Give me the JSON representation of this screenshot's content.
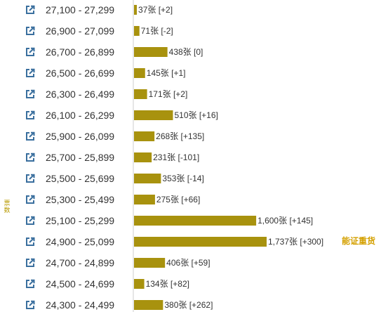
{
  "side_label": "票数",
  "colors": {
    "bar": "#a8920e",
    "axis": "#cccccc",
    "icon": "#3a6f9e",
    "note": "#d4a000"
  },
  "chart_data": {
    "type": "bar",
    "orientation": "horizontal",
    "categories": [
      "27,100 - 27,299",
      "26,900 - 27,099",
      "26,700 - 26,899",
      "26,500 - 26,699",
      "26,300 - 26,499",
      "26,100 - 26,299",
      "25,900 - 26,099",
      "25,700 - 25,899",
      "25,500 - 25,699",
      "25,300 - 25,499",
      "25,100 - 25,299",
      "24,900 - 25,099",
      "24,700 - 24,899",
      "24,500 - 24,699",
      "24,300 - 24,499"
    ],
    "values": [
      37,
      71,
      438,
      145,
      171,
      510,
      268,
      231,
      353,
      275,
      1600,
      1737,
      406,
      134,
      380
    ],
    "labels": [
      "37张 [+2]",
      "71张 [-2]",
      "438张 [0]",
      "145张 [+1]",
      "171张 [+2]",
      "510张 [+16]",
      "268张 [+135]",
      "231张 [-101]",
      "353张 [-14]",
      "275张 [+66]",
      "1,600张 [+145]",
      "1,737张 [+300]",
      "406张 [+59]",
      "134张 [+82]",
      "380张 [+262]"
    ],
    "xlim": [
      0,
      1737
    ],
    "annotations": [
      {
        "category": "24,900 - 25,099",
        "text": "能证重货"
      }
    ]
  }
}
